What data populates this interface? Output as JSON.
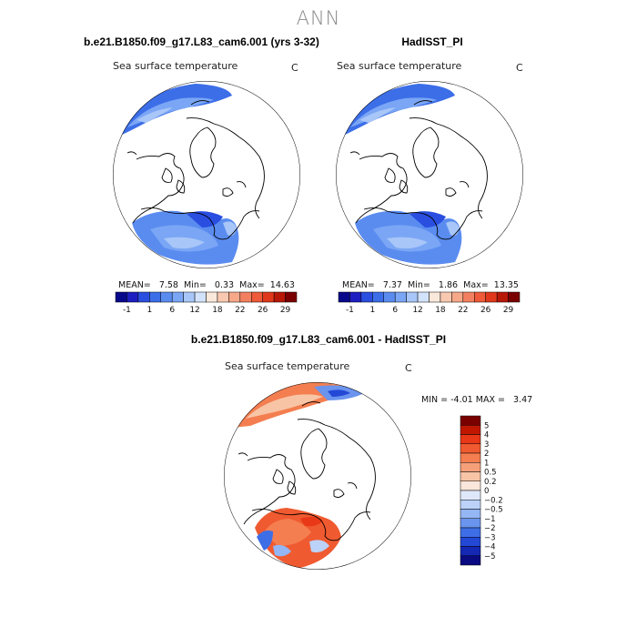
{
  "title": "ANN",
  "panels": [
    {
      "case_title": "b.e21.B1850.f09_g17.L83_cam6.001 (yrs 3-32)",
      "variable": "Sea surface temperature",
      "units": "C",
      "stats": {
        "mean_label": "MEAN=",
        "mean": "7.58",
        "min_label": "Min=",
        "min": "0.33",
        "max_label": "Max=",
        "max": "14.63"
      }
    },
    {
      "case_title": "HadISST_PI",
      "variable": "Sea surface temperature",
      "units": "C",
      "stats": {
        "mean_label": "MEAN=",
        "mean": "7.37",
        "min_label": "Min=",
        "min": "1.86",
        "max_label": "Max=",
        "max": "13.35"
      }
    },
    {
      "case_title": "b.e21.B1850.f09_g17.L83_cam6.001 - HadISST_PI",
      "variable": "Sea surface temperature",
      "units": "C",
      "stats": {
        "min_label": "MIN =",
        "min": "-4.01",
        "max_label": "MAX =",
        "max": "3.47"
      }
    }
  ],
  "abs_colorbar": {
    "colors": [
      "#08088a",
      "#1e1ec0",
      "#2a4ee0",
      "#3c6ee8",
      "#5a8cf0",
      "#7aa6f5",
      "#a8c6f8",
      "#d2e2fa",
      "#fae8da",
      "#f8c8b0",
      "#f6a888",
      "#f28060",
      "#ee5a3a",
      "#e0381c",
      "#b81808",
      "#7a0000"
    ],
    "tick_labels": [
      "-1",
      "1",
      "6",
      "12",
      "18",
      "22",
      "26",
      "29"
    ]
  },
  "diff_colorbar": {
    "colors": [
      "#7a0000",
      "#c01800",
      "#e83818",
      "#f05a30",
      "#f47e50",
      "#f6a07a",
      "#f8c4a6",
      "#fae6da",
      "#dfe8fa",
      "#bcd2f8",
      "#94b6f4",
      "#6a94ee",
      "#3e6ee6",
      "#2448d6",
      "#1428b4",
      "#0a0a82"
    ],
    "tick_labels": [
      "5",
      "4",
      "3",
      "2",
      "1",
      "0.5",
      "0.2",
      "0",
      "-0.2",
      "-0.5",
      "-1",
      "-2",
      "-3",
      "-4",
      "-5"
    ]
  },
  "chart_data": [
    {
      "type": "heatmap",
      "title": "b.e21.B1850.f09_g17.L83_cam6.001 (yrs 3-32)",
      "variable": "Sea surface temperature",
      "units": "C",
      "projection": "north polar stereographic",
      "statistics": {
        "mean": 7.58,
        "min": 0.33,
        "max": 14.63
      },
      "colorbar_ticks": [
        -1,
        1,
        6,
        12,
        18,
        22,
        26,
        29
      ]
    },
    {
      "type": "heatmap",
      "title": "HadISST_PI",
      "variable": "Sea surface temperature",
      "units": "C",
      "projection": "north polar stereographic",
      "statistics": {
        "mean": 7.37,
        "min": 1.86,
        "max": 13.35
      },
      "colorbar_ticks": [
        -1,
        1,
        6,
        12,
        18,
        22,
        26,
        29
      ]
    },
    {
      "type": "heatmap",
      "title": "b.e21.B1850.f09_g17.L83_cam6.001 - HadISST_PI",
      "variable": "Sea surface temperature",
      "units": "C",
      "projection": "north polar stereographic",
      "statistics": {
        "min": -4.01,
        "max": 3.47
      },
      "colorbar_ticks": [
        5,
        4,
        3,
        2,
        1,
        0.5,
        0.2,
        0,
        -0.2,
        -0.5,
        -1,
        -2,
        -3,
        -4,
        -5
      ]
    }
  ]
}
